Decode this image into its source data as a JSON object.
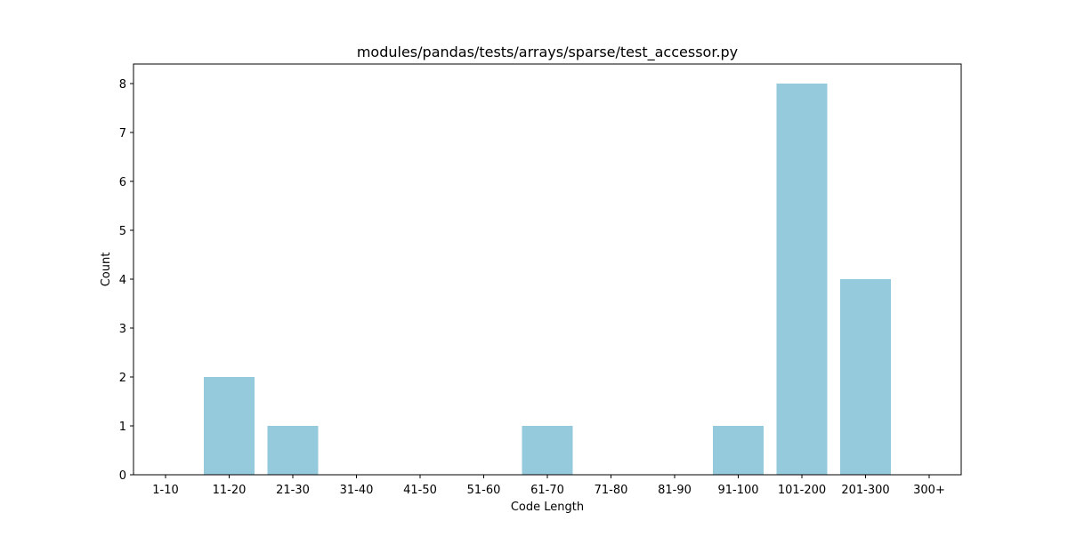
{
  "chart_data": {
    "type": "bar",
    "title": "modules/pandas/tests/arrays/sparse/test_accessor.py",
    "xlabel": "Code Length",
    "ylabel": "Count",
    "categories": [
      "1-10",
      "11-20",
      "21-30",
      "31-40",
      "41-50",
      "51-60",
      "61-70",
      "71-80",
      "81-90",
      "91-100",
      "101-200",
      "201-300",
      "300+"
    ],
    "values": [
      0,
      2,
      1,
      0,
      0,
      0,
      1,
      0,
      0,
      1,
      8,
      4,
      0
    ],
    "ylim": [
      0,
      8.4
    ],
    "yticks": [
      0,
      1,
      2,
      3,
      4,
      5,
      6,
      7,
      8
    ],
    "grid": false,
    "bar_color": "#95c9dc"
  }
}
